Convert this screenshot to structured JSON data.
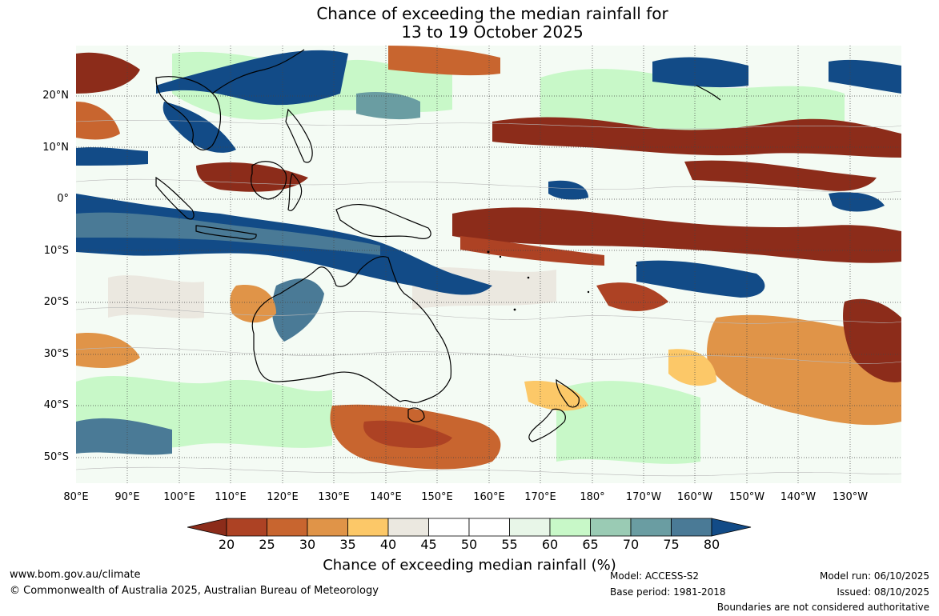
{
  "title_line1": "Chance of exceeding the median rainfall for",
  "title_line2": "13 to 19 October 2025",
  "lat_labels": [
    "20°N",
    "10°N",
    "0°",
    "10°S",
    "20°S",
    "30°S",
    "40°S",
    "50°S"
  ],
  "lon_labels": [
    "80°E",
    "90°E",
    "100°E",
    "110°E",
    "120°E",
    "130°E",
    "140°E",
    "150°E",
    "160°E",
    "170°E",
    "180°",
    "170°W",
    "160°W",
    "150°W",
    "140°W",
    "130°W"
  ],
  "colorbar": {
    "label": "Chance of exceeding median rainfall (%)",
    "ticks": [
      "20",
      "25",
      "30",
      "35",
      "40",
      "45",
      "50",
      "55",
      "60",
      "65",
      "70",
      "75",
      "80"
    ],
    "colors": [
      "#8c2c1a",
      "#ad4224",
      "#c8652f",
      "#e09448",
      "#fcc868",
      "#ebe8e0",
      "#ffffff",
      "#ffffff",
      "#e8f6e8",
      "#c8f8c8",
      "#9acbb4",
      "#6a9da2",
      "#4a7a96",
      "#124b87"
    ]
  },
  "footer": {
    "url": "www.bom.gov.au/climate",
    "copyright": "© Commonwealth of Australia 2025, Australian Bureau of Meteorology",
    "model": "Model: ACCESS-S2",
    "base_period": "Base period: 1981-2018",
    "model_run": "Model run: 06/10/2025",
    "issued": "Issued: 08/10/2025",
    "disclaimer": "Boundaries are not considered authoritative"
  }
}
